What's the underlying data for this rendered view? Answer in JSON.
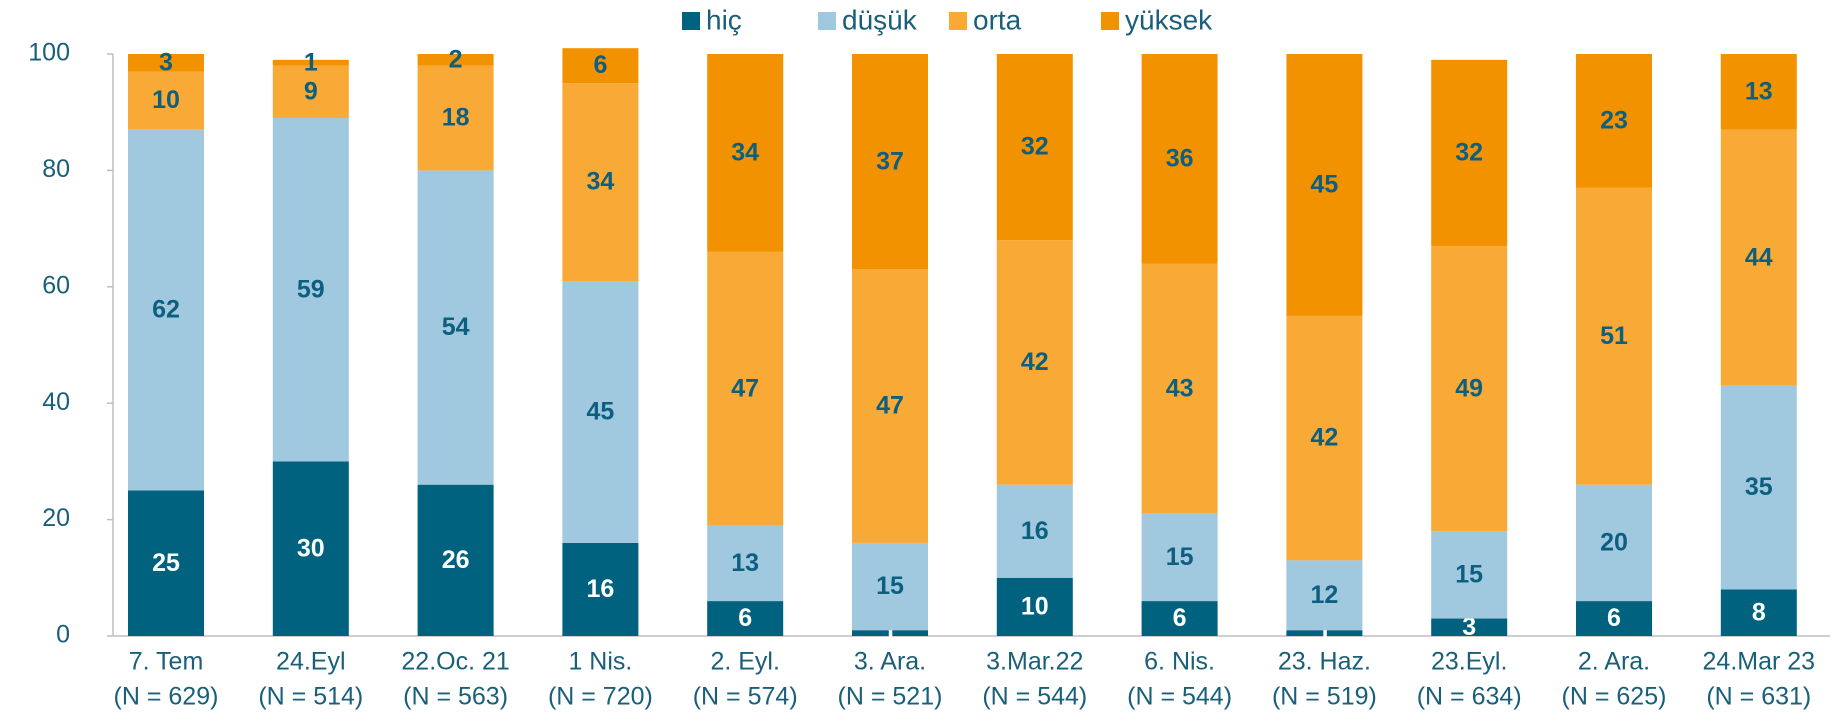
{
  "chart_data": {
    "type": "stacked-bar",
    "categories": [
      [
        "7. Tem",
        "(N = 629)"
      ],
      [
        "24.Eyl",
        "(N = 514)"
      ],
      [
        "22.Oc. 21",
        "(N = 563)"
      ],
      [
        "1 Nis.",
        "(N = 720)"
      ],
      [
        "2. Eyl.",
        "(N = 574)"
      ],
      [
        "3. Ara.",
        "(N = 521)"
      ],
      [
        "3.Mar.22",
        "(N = 544)"
      ],
      [
        "6. Nis.",
        "(N = 544)"
      ],
      [
        "23. Haz.",
        "(N = 519)"
      ],
      [
        "23.Eyl.",
        "(N = 634)"
      ],
      [
        "2. Ara.",
        "(N = 625)"
      ],
      [
        "24.Mar 23",
        "(N = 631)"
      ]
    ],
    "series": [
      {
        "name": "hiç",
        "color": "#00627f",
        "label_color": "#ffffff",
        "values": [
          25,
          30,
          26,
          16,
          6,
          1,
          10,
          6,
          1,
          3,
          6,
          8
        ]
      },
      {
        "name": "düşük",
        "color": "#a0c8de",
        "label_color": "#0d5f80",
        "values": [
          62,
          59,
          54,
          45,
          13,
          15,
          16,
          15,
          12,
          15,
          20,
          35
        ]
      },
      {
        "name": "orta",
        "color": "#f9a935",
        "label_color": "#0d5f80",
        "values": [
          10,
          9,
          18,
          34,
          47,
          47,
          42,
          43,
          42,
          49,
          51,
          44
        ]
      },
      {
        "name": "yüksek",
        "color": "#f39200",
        "label_color": "#0d5f80",
        "values": [
          3,
          1,
          2,
          6,
          34,
          37,
          32,
          36,
          45,
          32,
          23,
          13
        ]
      }
    ],
    "ylim": [
      0,
      100
    ],
    "yticks": [
      0,
      20,
      40,
      60,
      80,
      100
    ],
    "grid": false,
    "legend": "top"
  }
}
